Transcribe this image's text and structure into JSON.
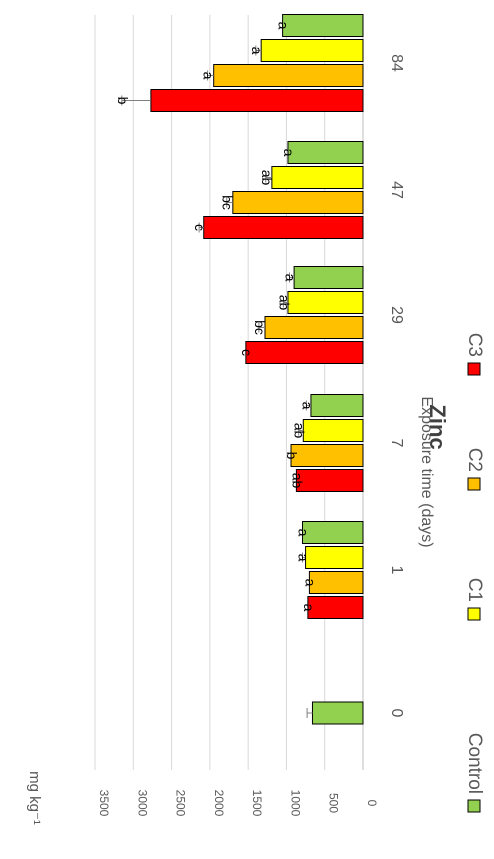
{
  "chart_data": {
    "type": "bar",
    "orientation": "rotated-90-clockwise",
    "title": "Zinc",
    "xlabel": "Exposure time (days)",
    "ylabel": "mg kg⁻¹",
    "ylim": [
      0,
      3500
    ],
    "yticks": [
      0,
      500,
      1000,
      1500,
      2000,
      2500,
      3000,
      3500
    ],
    "grid": true,
    "legend_position": "bottom",
    "categories": [
      "0",
      "1",
      "7",
      "29",
      "47",
      "84"
    ],
    "series": [
      {
        "name": "Control",
        "color": "#92d050",
        "values": [
          660,
          790,
          680,
          900,
          980,
          1050
        ],
        "errors": [
          70,
          0,
          60,
          60,
          0,
          0
        ],
        "letters": [
          "",
          "a",
          "a",
          "a",
          "a",
          "a"
        ]
      },
      {
        "name": "C1",
        "color": "#ffff00",
        "values": [
          null,
          750,
          780,
          980,
          1190,
          1330
        ],
        "errors": [
          null,
          40,
          60,
          60,
          80,
          70
        ],
        "letters": [
          "",
          "a",
          "ab",
          "ab",
          "ab",
          "a"
        ]
      },
      {
        "name": "C2",
        "color": "#ffc000",
        "values": [
          null,
          700,
          940,
          1280,
          1700,
          1950
        ],
        "errors": [
          null,
          0,
          0,
          80,
          80,
          80
        ],
        "letters": [
          "",
          "a",
          "b",
          "bc",
          "bc",
          "a"
        ]
      },
      {
        "name": "C3",
        "color": "#ff0000",
        "values": [
          null,
          720,
          870,
          1530,
          2080,
          2770
        ],
        "errors": [
          null,
          0,
          0,
          0,
          60,
          380
        ],
        "letters": [
          "",
          "a",
          "ab",
          "c",
          "c",
          "b"
        ]
      }
    ]
  }
}
